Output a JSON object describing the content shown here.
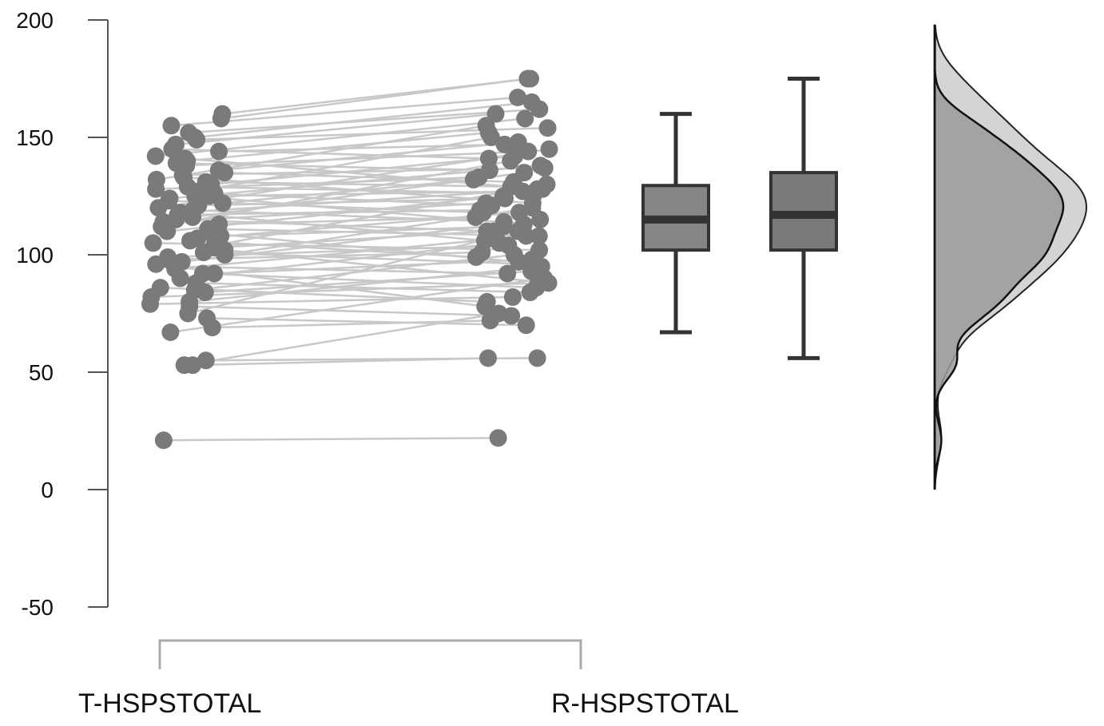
{
  "chart_data": {
    "type": "raincloud-paired",
    "title": "",
    "xlabel": "",
    "ylabel": "",
    "ylim": [
      -50,
      200
    ],
    "yticks": [
      -50,
      0,
      50,
      100,
      150,
      200
    ],
    "categories": [
      "T-HSPSTOTAL",
      "R-HSPSTOTAL"
    ],
    "grid": false,
    "colors": {
      "points": "#7a7a7a",
      "lines": "#c8c8c8",
      "box_fill": "#858585",
      "box_stroke": "#333333",
      "density_light": "#cfcfcf",
      "density_dark": "#9a9a9a"
    },
    "boxplots": [
      {
        "name": "T-HSPSTOTAL",
        "whisker_low": 67,
        "q1": 102,
        "median": 115,
        "q3": 129.5,
        "whisker_high": 160
      },
      {
        "name": "R-HSPSTOTAL",
        "whisker_low": 56,
        "q1": 102,
        "median": 117,
        "q3": 135,
        "whisker_high": 175
      }
    ],
    "pairs": [
      [
        21,
        22
      ],
      [
        55,
        56
      ],
      [
        53,
        56
      ],
      [
        53,
        75
      ],
      [
        67,
        90
      ],
      [
        69,
        72
      ],
      [
        73,
        70
      ],
      [
        75,
        110
      ],
      [
        78,
        74
      ],
      [
        80,
        95
      ],
      [
        82,
        88
      ],
      [
        85,
        100
      ],
      [
        88,
        84
      ],
      [
        90,
        105
      ],
      [
        92,
        98
      ],
      [
        95,
        92
      ],
      [
        97,
        115
      ],
      [
        99,
        104
      ],
      [
        100,
        120
      ],
      [
        101,
        96
      ],
      [
        103,
        110
      ],
      [
        104,
        130
      ],
      [
        105,
        102
      ],
      [
        107,
        118
      ],
      [
        108,
        112
      ],
      [
        110,
        125
      ],
      [
        111,
        108
      ],
      [
        112,
        140
      ],
      [
        113,
        116
      ],
      [
        114,
        122
      ],
      [
        115,
        110
      ],
      [
        116,
        135
      ],
      [
        117,
        119
      ],
      [
        118,
        128
      ],
      [
        119,
        114
      ],
      [
        120,
        145
      ],
      [
        121,
        124
      ],
      [
        122,
        132
      ],
      [
        123,
        118
      ],
      [
        124,
        138
      ],
      [
        125,
        127
      ],
      [
        126,
        121
      ],
      [
        127,
        150
      ],
      [
        128,
        133
      ],
      [
        129,
        126
      ],
      [
        130,
        142
      ],
      [
        131,
        129
      ],
      [
        132,
        155
      ],
      [
        134,
        137
      ],
      [
        135,
        131
      ],
      [
        136,
        148
      ],
      [
        138,
        144
      ],
      [
        139,
        136
      ],
      [
        140,
        152
      ],
      [
        142,
        158
      ],
      [
        144,
        147
      ],
      [
        145,
        141
      ],
      [
        147,
        160
      ],
      [
        149,
        154
      ],
      [
        150,
        165
      ],
      [
        152,
        162
      ],
      [
        155,
        167
      ],
      [
        158,
        175
      ],
      [
        160,
        175
      ],
      [
        86,
        80
      ],
      [
        92,
        86
      ],
      [
        96,
        78
      ],
      [
        102,
        88
      ],
      [
        106,
        99
      ],
      [
        118,
        106
      ],
      [
        125,
        113
      ],
      [
        133,
        122
      ],
      [
        141,
        128
      ],
      [
        79,
        82
      ],
      [
        84,
        93
      ],
      [
        94,
        108
      ],
      [
        98,
        101
      ],
      [
        109,
        97
      ]
    ]
  }
}
